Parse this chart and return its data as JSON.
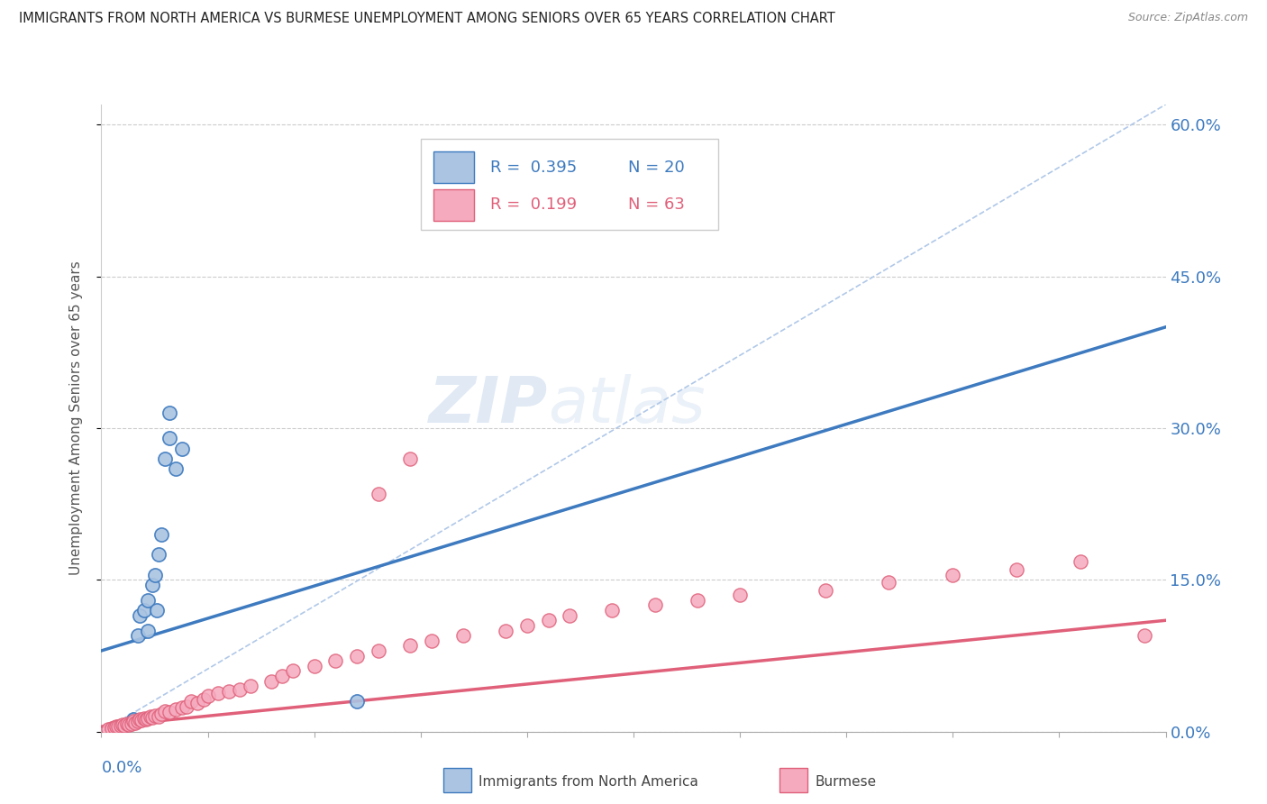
{
  "title": "IMMIGRANTS FROM NORTH AMERICA VS BURMESE UNEMPLOYMENT AMONG SENIORS OVER 65 YEARS CORRELATION CHART",
  "source": "Source: ZipAtlas.com",
  "ylabel": "Unemployment Among Seniors over 65 years",
  "right_yticks": [
    "0.0%",
    "15.0%",
    "30.0%",
    "45.0%",
    "60.0%"
  ],
  "right_ytick_vals": [
    0.0,
    0.15,
    0.3,
    0.45,
    0.6
  ],
  "xlim": [
    0.0,
    0.5
  ],
  "ylim": [
    0.0,
    0.62
  ],
  "legend_R1": "R =  0.395",
  "legend_N1": "N = 20",
  "legend_R2": "R =  0.199",
  "legend_N2": "N = 63",
  "blue_color": "#aac4e2",
  "pink_color": "#f5aabe",
  "blue_line_color": "#3d7abf",
  "pink_line_color": "#e0607a",
  "dashed_line_color": "#b0c8e8",
  "watermark_zip": "ZIP",
  "watermark_atlas": "atlas",
  "blue_scatter_x": [
    0.01,
    0.013,
    0.015,
    0.015,
    0.017,
    0.018,
    0.02,
    0.022,
    0.022,
    0.024,
    0.025,
    0.026,
    0.027,
    0.028,
    0.03,
    0.032,
    0.032,
    0.035,
    0.038,
    0.12
  ],
  "blue_scatter_y": [
    0.005,
    0.008,
    0.01,
    0.012,
    0.095,
    0.115,
    0.12,
    0.1,
    0.13,
    0.145,
    0.155,
    0.12,
    0.175,
    0.195,
    0.27,
    0.29,
    0.315,
    0.26,
    0.28,
    0.03
  ],
  "pink_scatter_x": [
    0.003,
    0.005,
    0.006,
    0.007,
    0.008,
    0.009,
    0.01,
    0.011,
    0.012,
    0.013,
    0.014,
    0.015,
    0.016,
    0.017,
    0.018,
    0.019,
    0.02,
    0.021,
    0.022,
    0.023,
    0.024,
    0.025,
    0.027,
    0.028,
    0.03,
    0.032,
    0.035,
    0.038,
    0.04,
    0.042,
    0.045,
    0.048,
    0.05,
    0.055,
    0.06,
    0.065,
    0.07,
    0.08,
    0.085,
    0.09,
    0.1,
    0.11,
    0.12,
    0.13,
    0.145,
    0.155,
    0.17,
    0.19,
    0.2,
    0.21,
    0.22,
    0.24,
    0.26,
    0.28,
    0.3,
    0.34,
    0.37,
    0.4,
    0.43,
    0.46,
    0.13,
    0.145,
    0.49
  ],
  "pink_scatter_y": [
    0.002,
    0.003,
    0.004,
    0.005,
    0.005,
    0.006,
    0.007,
    0.006,
    0.008,
    0.007,
    0.008,
    0.01,
    0.009,
    0.01,
    0.012,
    0.011,
    0.013,
    0.012,
    0.013,
    0.015,
    0.014,
    0.016,
    0.015,
    0.018,
    0.02,
    0.019,
    0.022,
    0.024,
    0.025,
    0.03,
    0.028,
    0.032,
    0.035,
    0.038,
    0.04,
    0.042,
    0.045,
    0.05,
    0.055,
    0.06,
    0.065,
    0.07,
    0.075,
    0.08,
    0.085,
    0.09,
    0.095,
    0.1,
    0.105,
    0.11,
    0.115,
    0.12,
    0.125,
    0.13,
    0.135,
    0.14,
    0.148,
    0.155,
    0.16,
    0.168,
    0.235,
    0.27,
    0.095
  ],
  "blue_trend_x": [
    0.0,
    0.5
  ],
  "blue_trend_y": [
    0.08,
    0.4
  ],
  "pink_trend_x": [
    0.0,
    0.5
  ],
  "pink_trend_y": [
    0.005,
    0.11
  ],
  "dash_line_x": [
    0.0,
    0.5
  ],
  "dash_line_y": [
    0.0,
    0.62
  ]
}
